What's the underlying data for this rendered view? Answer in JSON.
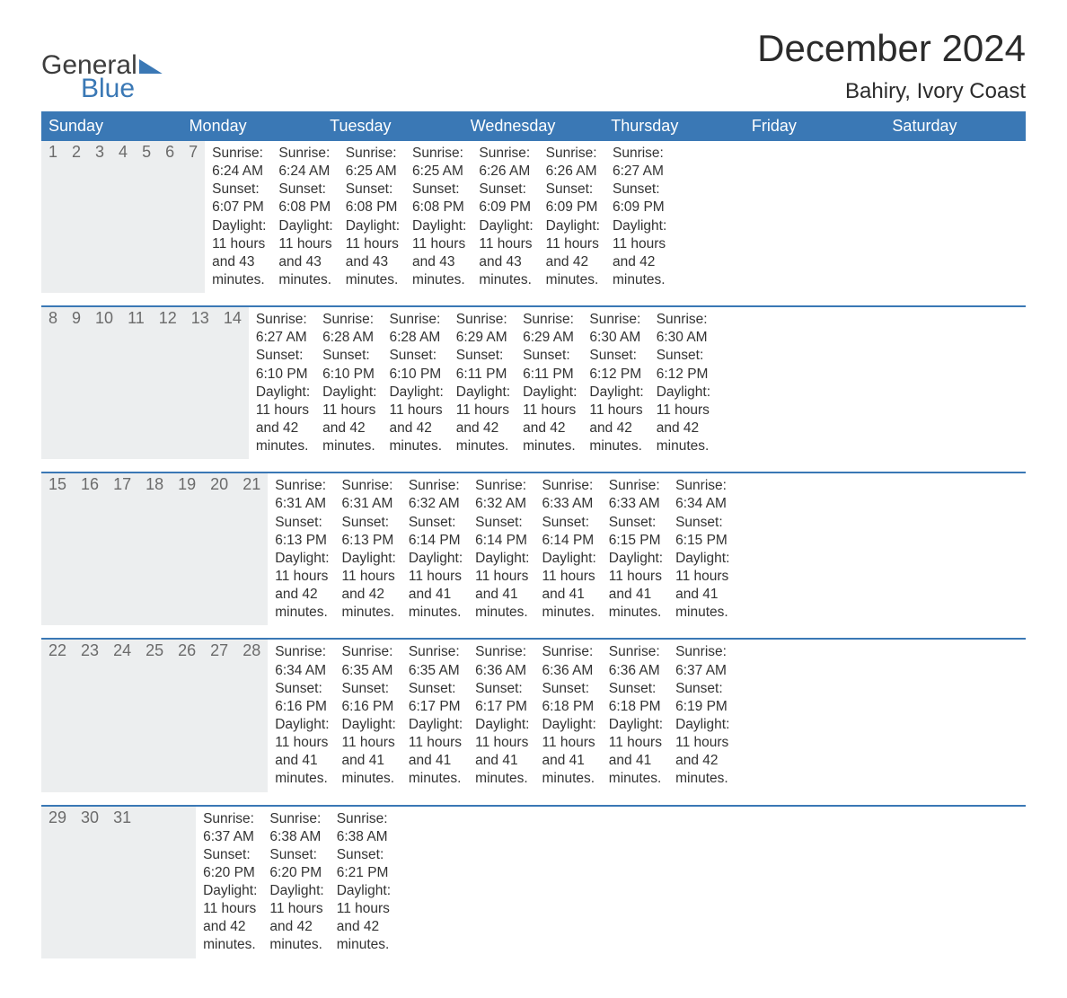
{
  "brand": {
    "top": "General",
    "bottom": "Blue"
  },
  "title": "December 2024",
  "location": "Bahiry, Ivory Coast",
  "colors": {
    "header_bg": "#3a78b5",
    "header_text": "#ffffff",
    "daynum_bg": "#eceeef",
    "daynum_text": "#6b6b6b",
    "body_text": "#333333",
    "rule": "#3a78b5"
  },
  "day_names": [
    "Sunday",
    "Monday",
    "Tuesday",
    "Wednesday",
    "Thursday",
    "Friday",
    "Saturday"
  ],
  "weeks": [
    [
      {
        "n": "1",
        "sr": "6:24 AM",
        "ss": "6:07 PM",
        "dl": "11 hours and 43 minutes."
      },
      {
        "n": "2",
        "sr": "6:24 AM",
        "ss": "6:08 PM",
        "dl": "11 hours and 43 minutes."
      },
      {
        "n": "3",
        "sr": "6:25 AM",
        "ss": "6:08 PM",
        "dl": "11 hours and 43 minutes."
      },
      {
        "n": "4",
        "sr": "6:25 AM",
        "ss": "6:08 PM",
        "dl": "11 hours and 43 minutes."
      },
      {
        "n": "5",
        "sr": "6:26 AM",
        "ss": "6:09 PM",
        "dl": "11 hours and 43 minutes."
      },
      {
        "n": "6",
        "sr": "6:26 AM",
        "ss": "6:09 PM",
        "dl": "11 hours and 42 minutes."
      },
      {
        "n": "7",
        "sr": "6:27 AM",
        "ss": "6:09 PM",
        "dl": "11 hours and 42 minutes."
      }
    ],
    [
      {
        "n": "8",
        "sr": "6:27 AM",
        "ss": "6:10 PM",
        "dl": "11 hours and 42 minutes."
      },
      {
        "n": "9",
        "sr": "6:28 AM",
        "ss": "6:10 PM",
        "dl": "11 hours and 42 minutes."
      },
      {
        "n": "10",
        "sr": "6:28 AM",
        "ss": "6:10 PM",
        "dl": "11 hours and 42 minutes."
      },
      {
        "n": "11",
        "sr": "6:29 AM",
        "ss": "6:11 PM",
        "dl": "11 hours and 42 minutes."
      },
      {
        "n": "12",
        "sr": "6:29 AM",
        "ss": "6:11 PM",
        "dl": "11 hours and 42 minutes."
      },
      {
        "n": "13",
        "sr": "6:30 AM",
        "ss": "6:12 PM",
        "dl": "11 hours and 42 minutes."
      },
      {
        "n": "14",
        "sr": "6:30 AM",
        "ss": "6:12 PM",
        "dl": "11 hours and 42 minutes."
      }
    ],
    [
      {
        "n": "15",
        "sr": "6:31 AM",
        "ss": "6:13 PM",
        "dl": "11 hours and 42 minutes."
      },
      {
        "n": "16",
        "sr": "6:31 AM",
        "ss": "6:13 PM",
        "dl": "11 hours and 42 minutes."
      },
      {
        "n": "17",
        "sr": "6:32 AM",
        "ss": "6:14 PM",
        "dl": "11 hours and 41 minutes."
      },
      {
        "n": "18",
        "sr": "6:32 AM",
        "ss": "6:14 PM",
        "dl": "11 hours and 41 minutes."
      },
      {
        "n": "19",
        "sr": "6:33 AM",
        "ss": "6:14 PM",
        "dl": "11 hours and 41 minutes."
      },
      {
        "n": "20",
        "sr": "6:33 AM",
        "ss": "6:15 PM",
        "dl": "11 hours and 41 minutes."
      },
      {
        "n": "21",
        "sr": "6:34 AM",
        "ss": "6:15 PM",
        "dl": "11 hours and 41 minutes."
      }
    ],
    [
      {
        "n": "22",
        "sr": "6:34 AM",
        "ss": "6:16 PM",
        "dl": "11 hours and 41 minutes."
      },
      {
        "n": "23",
        "sr": "6:35 AM",
        "ss": "6:16 PM",
        "dl": "11 hours and 41 minutes."
      },
      {
        "n": "24",
        "sr": "6:35 AM",
        "ss": "6:17 PM",
        "dl": "11 hours and 41 minutes."
      },
      {
        "n": "25",
        "sr": "6:36 AM",
        "ss": "6:17 PM",
        "dl": "11 hours and 41 minutes."
      },
      {
        "n": "26",
        "sr": "6:36 AM",
        "ss": "6:18 PM",
        "dl": "11 hours and 41 minutes."
      },
      {
        "n": "27",
        "sr": "6:36 AM",
        "ss": "6:18 PM",
        "dl": "11 hours and 41 minutes."
      },
      {
        "n": "28",
        "sr": "6:37 AM",
        "ss": "6:19 PM",
        "dl": "11 hours and 42 minutes."
      }
    ],
    [
      {
        "n": "29",
        "sr": "6:37 AM",
        "ss": "6:20 PM",
        "dl": "11 hours and 42 minutes."
      },
      {
        "n": "30",
        "sr": "6:38 AM",
        "ss": "6:20 PM",
        "dl": "11 hours and 42 minutes."
      },
      {
        "n": "31",
        "sr": "6:38 AM",
        "ss": "6:21 PM",
        "dl": "11 hours and 42 minutes."
      },
      null,
      null,
      null,
      null
    ]
  ],
  "labels": {
    "sunrise": "Sunrise:",
    "sunset": "Sunset:",
    "daylight": "Daylight:"
  }
}
